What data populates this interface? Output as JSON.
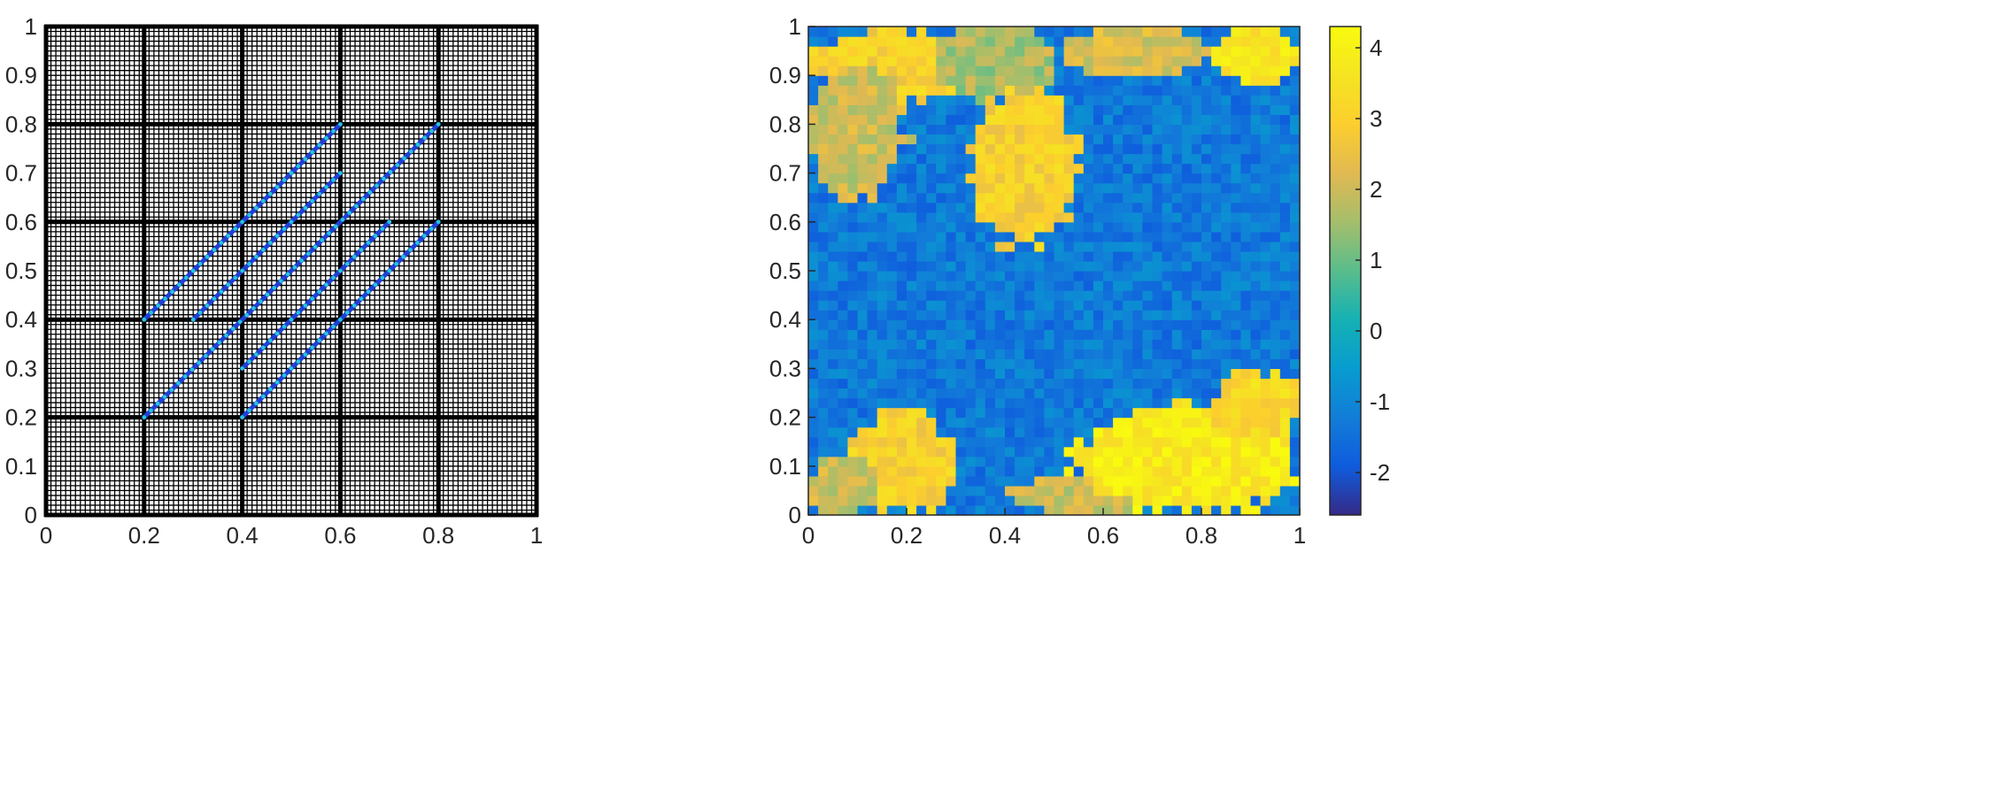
{
  "chart_data": [
    {
      "type": "line",
      "xlim": [
        0,
        1
      ],
      "ylim": [
        0,
        1
      ],
      "xticks": [
        "0",
        "0.2",
        "0.4",
        "0.6",
        "0.8",
        "1"
      ],
      "yticks": [
        "0",
        "0.1",
        "0.2",
        "0.3",
        "0.4",
        "0.5",
        "0.6",
        "0.7",
        "0.8",
        "0.9",
        "1"
      ],
      "fine_grid_step": 0.01,
      "coarse_grid_step": 0.2,
      "colors": {
        "fine_grid": "#000000",
        "coarse_grid": "#000000",
        "segment": "#1f3fd8",
        "segment_dots": "#22c7d8"
      },
      "segments": [
        {
          "x": [
            0.2,
            0.6
          ],
          "y": [
            0.4,
            0.8
          ]
        },
        {
          "x": [
            0.3,
            0.6
          ],
          "y": [
            0.4,
            0.7
          ]
        },
        {
          "x": [
            0.2,
            0.8
          ],
          "y": [
            0.2,
            0.8
          ]
        },
        {
          "x": [
            0.4,
            0.7
          ],
          "y": [
            0.3,
            0.6
          ]
        },
        {
          "x": [
            0.4,
            0.8
          ],
          "y": [
            0.2,
            0.6
          ]
        }
      ]
    },
    {
      "type": "heatmap",
      "xlim": [
        0,
        1
      ],
      "ylim": [
        0,
        1
      ],
      "xticks": [
        "0",
        "0.2",
        "0.4",
        "0.6",
        "0.8",
        "1"
      ],
      "yticks": [
        "0",
        "0.1",
        "0.2",
        "0.3",
        "0.4",
        "0.5",
        "0.6",
        "0.7",
        "0.8",
        "0.9",
        "1"
      ],
      "colormap": "parula",
      "cells_per_side": 50,
      "clim": [
        -2.6,
        4.3
      ],
      "colorbar_ticks": [
        -2,
        -1,
        0,
        1,
        2,
        3,
        4
      ],
      "colorbar_tick_labels": [
        "-2",
        "-1",
        "0",
        "1",
        "2",
        "3",
        "4"
      ],
      "regions": [
        {
          "label": "high-top-left",
          "x": [
            0.0,
            0.35
          ],
          "y": [
            0.85,
            1.0
          ],
          "level": 3.0
        },
        {
          "label": "green-left",
          "x": [
            0.0,
            0.2
          ],
          "y": [
            0.65,
            0.92
          ],
          "level": 2.0
        },
        {
          "label": "green-top-mid",
          "x": [
            0.25,
            0.5
          ],
          "y": [
            0.85,
            1.0
          ],
          "level": 1.6
        },
        {
          "label": "yellow-tongue",
          "x": [
            0.33,
            0.55
          ],
          "y": [
            0.55,
            0.88
          ],
          "level": 3.0
        },
        {
          "label": "yellow-top-right",
          "x": [
            0.82,
            1.0
          ],
          "y": [
            0.88,
            1.0
          ],
          "level": 3.6
        },
        {
          "label": "green-top-right",
          "x": [
            0.5,
            0.82
          ],
          "y": [
            0.9,
            1.0
          ],
          "level": 2.2
        },
        {
          "label": "orange-bottom-left",
          "x": [
            0.08,
            0.3
          ],
          "y": [
            0.0,
            0.22
          ],
          "level": 3.0
        },
        {
          "label": "green-bottom-left",
          "x": [
            0.0,
            0.15
          ],
          "y": [
            0.0,
            0.12
          ],
          "level": 2.0
        },
        {
          "label": "green-bottom-mid",
          "x": [
            0.42,
            0.72
          ],
          "y": [
            0.0,
            0.08
          ],
          "level": 2.0
        },
        {
          "label": "yellow-bottom-right",
          "x": [
            0.55,
            1.0
          ],
          "y": [
            0.0,
            0.22
          ],
          "level": 3.8
        },
        {
          "label": "orange-bottom-right",
          "x": [
            0.82,
            1.0
          ],
          "y": [
            0.15,
            0.3
          ],
          "level": 3.2
        }
      ],
      "background_level": -1.3
    }
  ]
}
